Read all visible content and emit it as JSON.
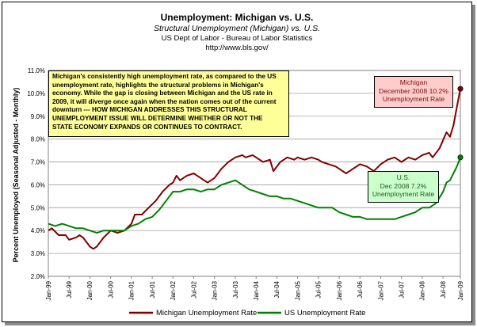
{
  "chart_data": {
    "type": "line",
    "title": "Unemployment: Michigan vs. U.S.",
    "subtitle": "Structural Unemployment (Michigan) vs. U.S.",
    "source_line1": "US Dept of Labor - Bureau of Labor Statistics",
    "source_line2": "http://www.bls.gov/",
    "ylabel": "Percent Unemployed (Seasonal Adjusted - Monthly)",
    "xlabel": "",
    "ylim": [
      2.0,
      11.0
    ],
    "yticks": [
      "2.0%",
      "3.0%",
      "4.0%",
      "5.0%",
      "6.0%",
      "7.0%",
      "8.0%",
      "9.0%",
      "10.0%",
      "11.0%"
    ],
    "x_range": [
      0,
      119
    ],
    "x_ticks": [
      {
        "i": 0,
        "label": "Jan-99"
      },
      {
        "i": 6,
        "label": "Jul-99"
      },
      {
        "i": 12,
        "label": "Jan-00"
      },
      {
        "i": 18,
        "label": "Jul-00"
      },
      {
        "i": 24,
        "label": "Jan-01"
      },
      {
        "i": 30,
        "label": "Jul-01"
      },
      {
        "i": 36,
        "label": "Jan-02"
      },
      {
        "i": 42,
        "label": "Jul-02"
      },
      {
        "i": 48,
        "label": "Jan-03"
      },
      {
        "i": 54,
        "label": "Jul-03"
      },
      {
        "i": 60,
        "label": "Jan-04"
      },
      {
        "i": 66,
        "label": "Jul-04"
      },
      {
        "i": 72,
        "label": "Jan-05"
      },
      {
        "i": 78,
        "label": "Jul-05"
      },
      {
        "i": 84,
        "label": "Jan-06"
      },
      {
        "i": 90,
        "label": "Jul-06"
      },
      {
        "i": 96,
        "label": "Jan-07"
      },
      {
        "i": 102,
        "label": "Jul-07"
      },
      {
        "i": 108,
        "label": "Jan-08"
      },
      {
        "i": 114,
        "label": "Jul-08"
      },
      {
        "i": 119,
        "label": "Jan-09"
      }
    ],
    "grid": true,
    "legend_position": "bottom",
    "series": [
      {
        "name": "Michigan Unemployment Rate",
        "color": "#800000",
        "anchors": [
          [
            0,
            4.0
          ],
          [
            1,
            4.1
          ],
          [
            3,
            3.8
          ],
          [
            5,
            3.8
          ],
          [
            6,
            3.6
          ],
          [
            8,
            3.7
          ],
          [
            9,
            3.8
          ],
          [
            10,
            3.7
          ],
          [
            12,
            3.3
          ],
          [
            13,
            3.2
          ],
          [
            14,
            3.3
          ],
          [
            16,
            3.7
          ],
          [
            18,
            4.0
          ],
          [
            20,
            3.9
          ],
          [
            22,
            4.0
          ],
          [
            24,
            4.3
          ],
          [
            25,
            4.7
          ],
          [
            27,
            4.7
          ],
          [
            29,
            5.0
          ],
          [
            31,
            5.3
          ],
          [
            33,
            5.7
          ],
          [
            35,
            6.0
          ],
          [
            36,
            6.1
          ],
          [
            37,
            6.4
          ],
          [
            38,
            6.2
          ],
          [
            40,
            6.4
          ],
          [
            42,
            6.5
          ],
          [
            43,
            6.4
          ],
          [
            45,
            6.2
          ],
          [
            46,
            6.1
          ],
          [
            48,
            6.3
          ],
          [
            50,
            6.7
          ],
          [
            52,
            7.0
          ],
          [
            54,
            7.2
          ],
          [
            56,
            7.3
          ],
          [
            57,
            7.2
          ],
          [
            59,
            7.3
          ],
          [
            60,
            7.2
          ],
          [
            62,
            7.0
          ],
          [
            64,
            7.1
          ],
          [
            65,
            6.6
          ],
          [
            67,
            7.0
          ],
          [
            69,
            7.2
          ],
          [
            71,
            7.1
          ],
          [
            72,
            7.2
          ],
          [
            74,
            7.1
          ],
          [
            76,
            7.2
          ],
          [
            78,
            7.1
          ],
          [
            79,
            7.0
          ],
          [
            81,
            6.9
          ],
          [
            83,
            6.8
          ],
          [
            84,
            6.7
          ],
          [
            85,
            6.6
          ],
          [
            86,
            6.5
          ],
          [
            88,
            6.7
          ],
          [
            90,
            6.9
          ],
          [
            92,
            6.8
          ],
          [
            94,
            6.6
          ],
          [
            96,
            6.9
          ],
          [
            98,
            7.1
          ],
          [
            100,
            7.2
          ],
          [
            102,
            7.0
          ],
          [
            104,
            7.2
          ],
          [
            106,
            7.1
          ],
          [
            108,
            7.3
          ],
          [
            110,
            7.4
          ],
          [
            111,
            7.2
          ],
          [
            113,
            7.6
          ],
          [
            115,
            8.3
          ],
          [
            116,
            8.1
          ],
          [
            117,
            8.6
          ],
          [
            118,
            9.4
          ],
          [
            119,
            10.2
          ]
        ]
      },
      {
        "name": "US Unemployment Rate",
        "color": "#008000",
        "anchors": [
          [
            0,
            4.3
          ],
          [
            2,
            4.2
          ],
          [
            4,
            4.3
          ],
          [
            6,
            4.2
          ],
          [
            8,
            4.1
          ],
          [
            10,
            4.1
          ],
          [
            12,
            4.0
          ],
          [
            14,
            3.9
          ],
          [
            16,
            4.0
          ],
          [
            18,
            4.0
          ],
          [
            20,
            4.0
          ],
          [
            22,
            4.0
          ],
          [
            24,
            4.2
          ],
          [
            26,
            4.3
          ],
          [
            28,
            4.5
          ],
          [
            30,
            4.6
          ],
          [
            32,
            4.9
          ],
          [
            34,
            5.3
          ],
          [
            36,
            5.7
          ],
          [
            38,
            5.7
          ],
          [
            40,
            5.8
          ],
          [
            42,
            5.8
          ],
          [
            44,
            5.7
          ],
          [
            46,
            5.8
          ],
          [
            48,
            5.8
          ],
          [
            50,
            6.0
          ],
          [
            52,
            6.1
          ],
          [
            54,
            6.2
          ],
          [
            56,
            6.0
          ],
          [
            58,
            5.8
          ],
          [
            60,
            5.7
          ],
          [
            62,
            5.6
          ],
          [
            64,
            5.5
          ],
          [
            66,
            5.5
          ],
          [
            68,
            5.4
          ],
          [
            70,
            5.4
          ],
          [
            72,
            5.3
          ],
          [
            74,
            5.2
          ],
          [
            76,
            5.1
          ],
          [
            78,
            5.0
          ],
          [
            80,
            5.0
          ],
          [
            82,
            5.0
          ],
          [
            84,
            4.8
          ],
          [
            86,
            4.7
          ],
          [
            88,
            4.6
          ],
          [
            90,
            4.6
          ],
          [
            92,
            4.5
          ],
          [
            94,
            4.5
          ],
          [
            96,
            4.5
          ],
          [
            98,
            4.5
          ],
          [
            100,
            4.5
          ],
          [
            102,
            4.6
          ],
          [
            104,
            4.7
          ],
          [
            106,
            4.8
          ],
          [
            108,
            5.0
          ],
          [
            110,
            5.0
          ],
          [
            112,
            5.2
          ],
          [
            114,
            5.7
          ],
          [
            115,
            6.1
          ],
          [
            116,
            6.2
          ],
          [
            117,
            6.5
          ],
          [
            118,
            6.8
          ],
          [
            119,
            7.2
          ]
        ]
      }
    ],
    "annotations": {
      "note_lines": [
        "Michigan's consistently high unemployment rate, as compared to the US",
        "unemployment rate, highlights the structural problems in Michigan's",
        "economy.  While the gap is closing between Michigan and the US rate in",
        "2009, it will diverge once again when the nation comes out of the current",
        "downturn --- HOW MICHIGAN ADDRESSES THIS STRUCTURAL",
        "UNEMPLOYMENT ISSUE WILL DETERMINE WHETHER OR NOT THE",
        "STATE ECONOMY EXPANDS OR CONTINUES TO CONTRACT."
      ],
      "michigan_callout": [
        "Michigan",
        "December 2008 10.2%",
        "Unemployment Rate"
      ],
      "us_callout": [
        "U.S.",
        "Dec 2008 7.2%",
        "Unemployment Rate"
      ]
    }
  }
}
